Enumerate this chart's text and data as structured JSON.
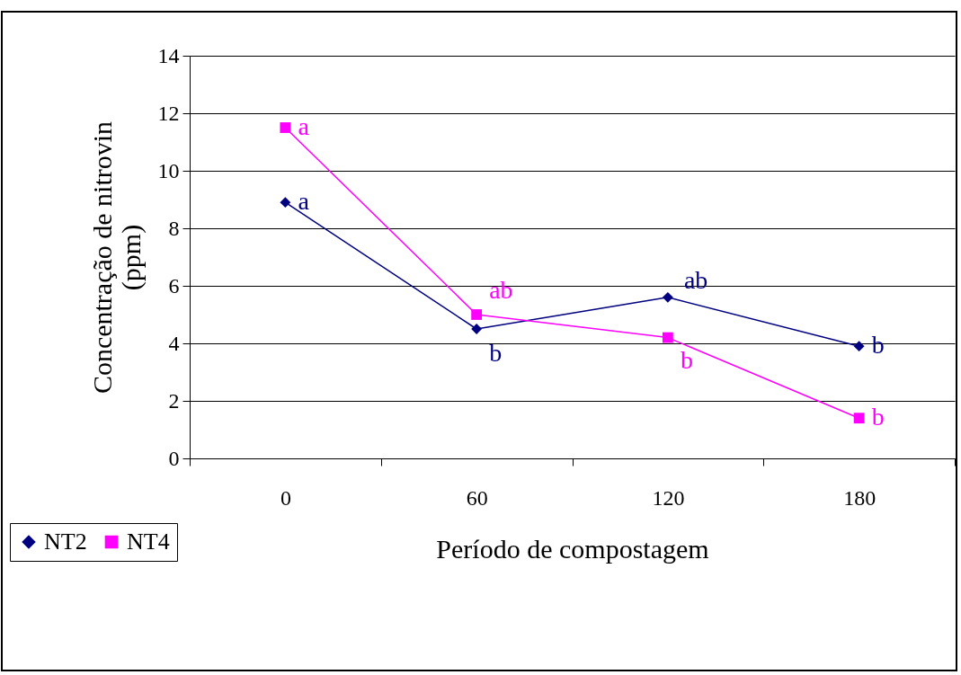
{
  "chart_data": {
    "type": "line",
    "xlabel": "Período de compostagem",
    "ylabel": "Concentração de nitrovin\n(ppm)",
    "categories": [
      "0",
      "60",
      "120",
      "180"
    ],
    "series": [
      {
        "name": "NT2",
        "color": "#000080",
        "marker": "diamond",
        "values": [
          8.9,
          4.5,
          5.6,
          3.9
        ],
        "value_labels": [
          "a",
          "b",
          "ab",
          "b"
        ]
      },
      {
        "name": "NT4",
        "color": "#ff00ff",
        "marker": "square",
        "values": [
          11.5,
          5.0,
          4.2,
          1.4
        ],
        "value_labels": [
          "a",
          "ab",
          "b",
          "b"
        ]
      }
    ],
    "ylim": [
      0,
      14
    ],
    "yticks": [
      0,
      2,
      4,
      6,
      8,
      10,
      12,
      14
    ],
    "grid": "y",
    "legend": "bottom left"
  }
}
